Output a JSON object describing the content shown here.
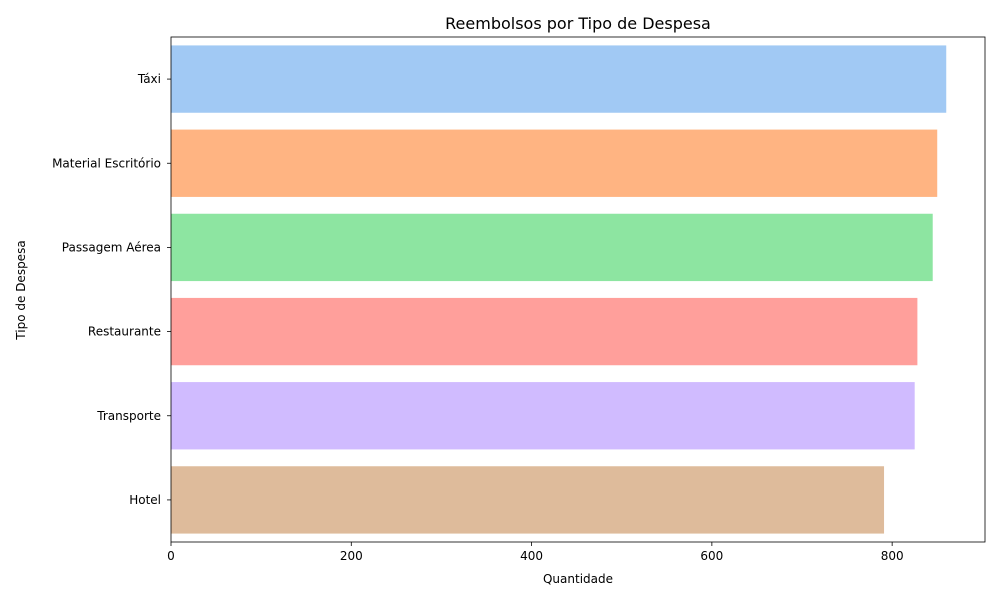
{
  "chart_data": {
    "type": "bar",
    "orientation": "horizontal",
    "title": "Reembolsos por Tipo de Despesa",
    "xlabel": "Quantidade",
    "ylabel": "Tipo de Despesa",
    "categories": [
      "Táxi",
      "Material Escritório",
      "Passagem Aérea",
      "Restaurante",
      "Transporte",
      "Hotel"
    ],
    "values": [
      860,
      850,
      845,
      828,
      825,
      791
    ],
    "colors": [
      "#a1c9f4",
      "#ffb482",
      "#8de5a1",
      "#ff9f9b",
      "#d0bbff",
      "#debb9b"
    ],
    "xlim": [
      0,
      903
    ],
    "xticks": [
      0,
      200,
      400,
      600,
      800
    ],
    "xtick_labels": [
      "0",
      "200",
      "400",
      "600",
      "800"
    ],
    "grid": false,
    "legend": "none"
  }
}
